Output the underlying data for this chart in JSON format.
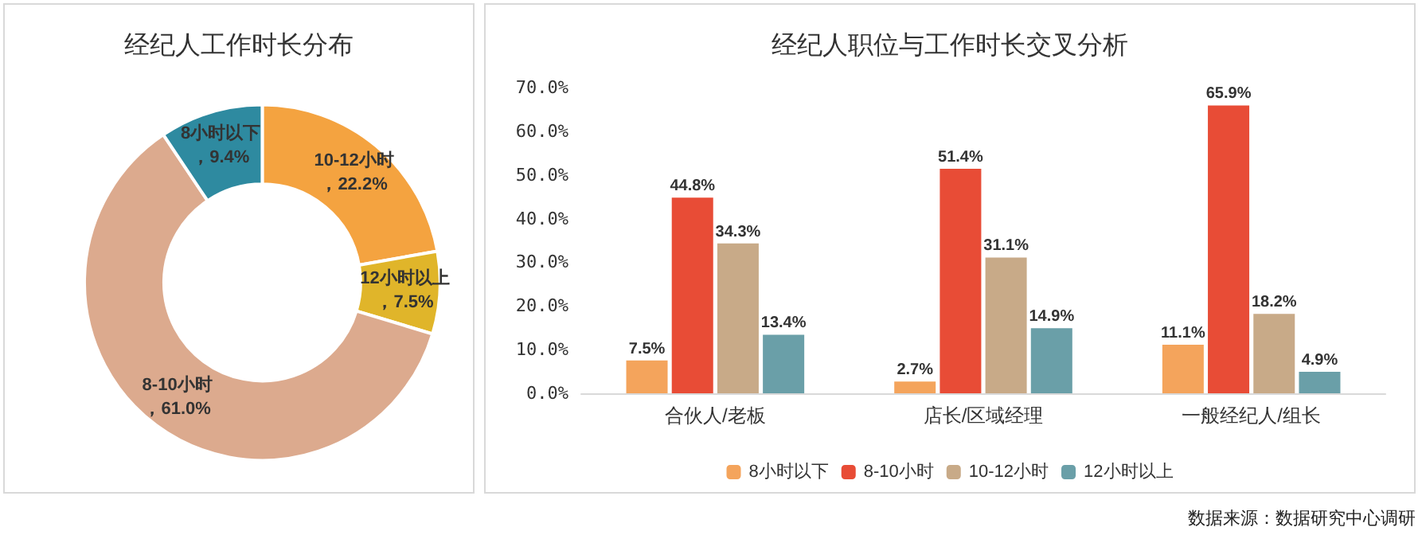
{
  "chart_data": [
    {
      "type": "donut",
      "title": "经纪人工作时长分布",
      "categories": [
        "10-12小时",
        "12小时以上",
        "8-10小时",
        "8小时以下"
      ],
      "values": [
        22.2,
        7.5,
        61.0,
        9.4
      ],
      "colors": [
        "#f4a340",
        "#e0b52a",
        "#dcaa8e",
        "#2e8aa0"
      ],
      "value_labels": [
        "，22.2%",
        "，7.5%",
        "，61.0%",
        "，9.4%"
      ],
      "legend": false
    },
    {
      "type": "bar",
      "title": "经纪人职位与工作时长交叉分析",
      "categories": [
        "合伙人/老板",
        "店长/区域经理",
        "一般经纪人/组长"
      ],
      "series": [
        {
          "name": "8小时以下",
          "color": "#f4a45c",
          "values": [
            7.5,
            2.7,
            11.1
          ],
          "value_labels": [
            "7.5%",
            "2.7%",
            "11.1%"
          ]
        },
        {
          "name": "8-10小时",
          "color": "#e84c36",
          "values": [
            44.8,
            51.4,
            65.9
          ],
          "value_labels": [
            "44.8%",
            "51.4%",
            "65.9%"
          ]
        },
        {
          "name": "10-12小时",
          "color": "#c8aa88",
          "values": [
            34.3,
            31.1,
            18.2
          ],
          "value_labels": [
            "34.3%",
            "31.1%",
            "18.2%"
          ]
        },
        {
          "name": "12小时以上",
          "color": "#6a9fa8",
          "values": [
            13.4,
            14.9,
            4.9
          ],
          "value_labels": [
            "13.4%",
            "14.9%",
            "4.9%"
          ]
        }
      ],
      "ylim": [
        0,
        70
      ],
      "yticks": [
        {
          "value": 0,
          "label": "0.0%"
        },
        {
          "value": 10,
          "label": "10.0%"
        },
        {
          "value": 20,
          "label": "20.0%"
        },
        {
          "value": 30,
          "label": "30.0%"
        },
        {
          "value": 40,
          "label": "40.0%"
        },
        {
          "value": 50,
          "label": "50.0%"
        },
        {
          "value": 60,
          "label": "60.0%"
        },
        {
          "value": 70,
          "label": "70.0%"
        }
      ],
      "grid": false,
      "legend": "bottom",
      "annotations": [
        "数据来源：数据研究中心调研"
      ]
    }
  ]
}
